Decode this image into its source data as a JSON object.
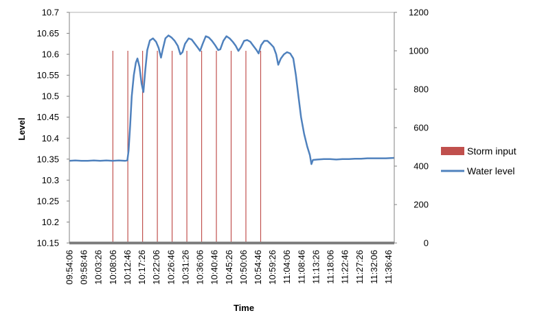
{
  "chart_data": {
    "type": "line",
    "xlabel": "Time",
    "ylabel": "Level",
    "y_left": {
      "min": 10.15,
      "max": 10.7,
      "ticks": [
        "10.15",
        "10.2",
        "10.25",
        "10.3",
        "10.35",
        "10.4",
        "10.45",
        "10.5",
        "10.55",
        "10.6",
        "10.65",
        "10.7"
      ]
    },
    "y_right": {
      "min": 0,
      "max": 1200,
      "ticks": [
        "0",
        "200",
        "400",
        "600",
        "800",
        "1000",
        "1200"
      ]
    },
    "x_tick_labels": [
      "09:54:06",
      "09:58:46",
      "10:03:26",
      "10:08:06",
      "10:12:46",
      "10:17:26",
      "10:22:06",
      "10:26:46",
      "10:31:26",
      "10:36:06",
      "10:40:46",
      "10:45:26",
      "10:50:06",
      "10:54:46",
      "10:59:26",
      "11:04:06",
      "11:08:46",
      "11:13:26",
      "11:18:06",
      "11:22:46",
      "11:27:26",
      "11:32:06",
      "11:36:46"
    ],
    "x_start": "09:54:06",
    "x_end": "11:38:40",
    "grid": false,
    "legend_position": "right",
    "series": [
      {
        "name": "Storm input",
        "type": "bar",
        "axis": "right",
        "color": "#c0504d",
        "points": [
          {
            "x": "10:08:06",
            "y": 1000
          },
          {
            "x": "10:12:55",
            "y": 1000
          },
          {
            "x": "10:17:40",
            "y": 1000
          },
          {
            "x": "10:22:25",
            "y": 1000
          },
          {
            "x": "10:27:10",
            "y": 1000
          },
          {
            "x": "10:31:55",
            "y": 1000
          },
          {
            "x": "10:36:40",
            "y": 1000
          },
          {
            "x": "10:41:25",
            "y": 1000
          },
          {
            "x": "10:46:10",
            "y": 1000
          },
          {
            "x": "10:50:55",
            "y": 1000
          },
          {
            "x": "10:55:40",
            "y": 1000
          }
        ],
        "baseline_color": "#808080"
      },
      {
        "name": "Water level",
        "type": "line",
        "axis": "left",
        "color": "#4f81bd",
        "points": [
          {
            "x": "09:54:06",
            "y": 10.346
          },
          {
            "x": "09:56:00",
            "y": 10.347
          },
          {
            "x": "09:58:00",
            "y": 10.346
          },
          {
            "x": "10:00:00",
            "y": 10.346
          },
          {
            "x": "10:02:00",
            "y": 10.347
          },
          {
            "x": "10:04:00",
            "y": 10.346
          },
          {
            "x": "10:06:00",
            "y": 10.347
          },
          {
            "x": "10:08:00",
            "y": 10.346
          },
          {
            "x": "10:10:00",
            "y": 10.347
          },
          {
            "x": "10:12:00",
            "y": 10.346
          },
          {
            "x": "10:12:46",
            "y": 10.347
          },
          {
            "x": "10:13:10",
            "y": 10.37
          },
          {
            "x": "10:13:40",
            "y": 10.43
          },
          {
            "x": "10:14:10",
            "y": 10.5
          },
          {
            "x": "10:14:50",
            "y": 10.55
          },
          {
            "x": "10:15:30",
            "y": 10.58
          },
          {
            "x": "10:16:00",
            "y": 10.59
          },
          {
            "x": "10:16:40",
            "y": 10.57
          },
          {
            "x": "10:17:20",
            "y": 10.53
          },
          {
            "x": "10:17:56",
            "y": 10.51
          },
          {
            "x": "10:18:30",
            "y": 10.56
          },
          {
            "x": "10:19:10",
            "y": 10.61
          },
          {
            "x": "10:20:00",
            "y": 10.633
          },
          {
            "x": "10:21:00",
            "y": 10.638
          },
          {
            "x": "10:22:00",
            "y": 10.63
          },
          {
            "x": "10:22:50",
            "y": 10.615
          },
          {
            "x": "10:23:35",
            "y": 10.592
          },
          {
            "x": "10:24:10",
            "y": 10.612
          },
          {
            "x": "10:25:00",
            "y": 10.638
          },
          {
            "x": "10:26:00",
            "y": 10.645
          },
          {
            "x": "10:27:00",
            "y": 10.64
          },
          {
            "x": "10:28:00",
            "y": 10.632
          },
          {
            "x": "10:29:00",
            "y": 10.62
          },
          {
            "x": "10:29:50",
            "y": 10.6
          },
          {
            "x": "10:30:30",
            "y": 10.605
          },
          {
            "x": "10:31:20",
            "y": 10.625
          },
          {
            "x": "10:32:30",
            "y": 10.638
          },
          {
            "x": "10:33:30",
            "y": 10.635
          },
          {
            "x": "10:34:30",
            "y": 10.625
          },
          {
            "x": "10:35:30",
            "y": 10.615
          },
          {
            "x": "10:36:10",
            "y": 10.608
          },
          {
            "x": "10:37:00",
            "y": 10.625
          },
          {
            "x": "10:38:00",
            "y": 10.643
          },
          {
            "x": "10:39:00",
            "y": 10.64
          },
          {
            "x": "10:40:00",
            "y": 10.632
          },
          {
            "x": "10:41:00",
            "y": 10.622
          },
          {
            "x": "10:42:00",
            "y": 10.61
          },
          {
            "x": "10:42:40",
            "y": 10.612
          },
          {
            "x": "10:43:40",
            "y": 10.632
          },
          {
            "x": "10:44:40",
            "y": 10.643
          },
          {
            "x": "10:45:40",
            "y": 10.638
          },
          {
            "x": "10:46:40",
            "y": 10.63
          },
          {
            "x": "10:47:40",
            "y": 10.62
          },
          {
            "x": "10:48:30",
            "y": 10.608
          },
          {
            "x": "10:49:20",
            "y": 10.617
          },
          {
            "x": "10:50:20",
            "y": 10.632
          },
          {
            "x": "10:51:20",
            "y": 10.634
          },
          {
            "x": "10:52:20",
            "y": 10.63
          },
          {
            "x": "10:53:20",
            "y": 10.62
          },
          {
            "x": "10:54:20",
            "y": 10.61
          },
          {
            "x": "10:55:00",
            "y": 10.602
          },
          {
            "x": "10:55:50",
            "y": 10.622
          },
          {
            "x": "10:56:50",
            "y": 10.632
          },
          {
            "x": "10:57:50",
            "y": 10.632
          },
          {
            "x": "10:58:50",
            "y": 10.625
          },
          {
            "x": "10:59:50",
            "y": 10.617
          },
          {
            "x": "11:00:40",
            "y": 10.6
          },
          {
            "x": "11:01:20",
            "y": 10.575
          },
          {
            "x": "11:02:10",
            "y": 10.59
          },
          {
            "x": "11:03:10",
            "y": 10.6
          },
          {
            "x": "11:04:10",
            "y": 10.605
          },
          {
            "x": "11:05:10",
            "y": 10.602
          },
          {
            "x": "11:06:10",
            "y": 10.59
          },
          {
            "x": "11:07:00",
            "y": 10.55
          },
          {
            "x": "11:07:50",
            "y": 10.5
          },
          {
            "x": "11:08:40",
            "y": 10.45
          },
          {
            "x": "11:09:40",
            "y": 10.41
          },
          {
            "x": "11:10:40",
            "y": 10.38
          },
          {
            "x": "11:11:30",
            "y": 10.36
          },
          {
            "x": "11:12:00",
            "y": 10.338
          },
          {
            "x": "11:12:30",
            "y": 10.348
          },
          {
            "x": "11:14:00",
            "y": 10.349
          },
          {
            "x": "11:16:00",
            "y": 10.35
          },
          {
            "x": "11:18:00",
            "y": 10.35
          },
          {
            "x": "11:20:00",
            "y": 10.349
          },
          {
            "x": "11:22:00",
            "y": 10.35
          },
          {
            "x": "11:24:00",
            "y": 10.35
          },
          {
            "x": "11:26:00",
            "y": 10.351
          },
          {
            "x": "11:28:00",
            "y": 10.351
          },
          {
            "x": "11:30:00",
            "y": 10.352
          },
          {
            "x": "11:32:00",
            "y": 10.352
          },
          {
            "x": "11:34:00",
            "y": 10.352
          },
          {
            "x": "11:36:00",
            "y": 10.352
          },
          {
            "x": "11:38:40",
            "y": 10.353
          }
        ]
      }
    ]
  }
}
